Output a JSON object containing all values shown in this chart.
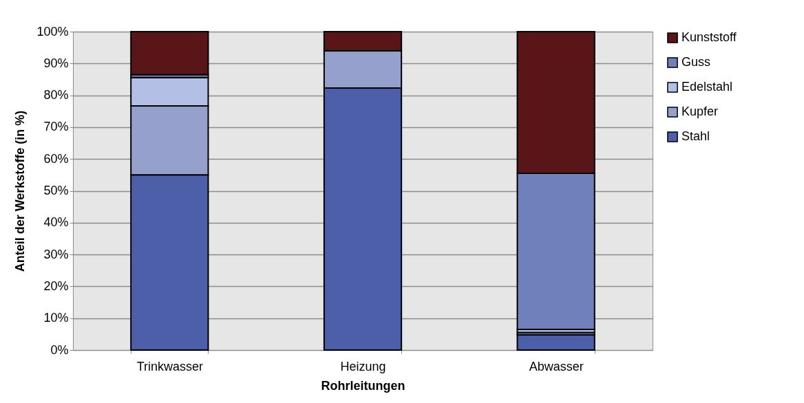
{
  "chart_data": {
    "type": "bar",
    "stacked": true,
    "xlabel": "Rohrleitungen",
    "ylabel": "Anteil der Werkstoffe (in %)",
    "categories": [
      "Trinkwasser",
      "Heizung",
      "Abwasser"
    ],
    "series": [
      {
        "name": "Stahl",
        "color": "#4d5fa9",
        "values": [
          55,
          82.3,
          4.8
        ]
      },
      {
        "name": "Kupfer",
        "color": "#95a0cd",
        "values": [
          21.7,
          11.7,
          0.7
        ]
      },
      {
        "name": "Edelstahl",
        "color": "#b4bfe6",
        "values": [
          8.9,
          0,
          1
        ]
      },
      {
        "name": "Guss",
        "color": "#7080bb",
        "values": [
          0.9,
          0,
          49
        ]
      },
      {
        "name": "Kunststoff",
        "color": "#5a1518",
        "values": [
          13.5,
          6,
          44.5
        ]
      }
    ],
    "ylim": [
      0,
      100
    ],
    "yticks": [
      {
        "value": 0,
        "label": "0%"
      },
      {
        "value": 10,
        "label": "10%"
      },
      {
        "value": 20,
        "label": "20%"
      },
      {
        "value": 30,
        "label": "30%"
      },
      {
        "value": 40,
        "label": "40%"
      },
      {
        "value": 50,
        "label": "50%"
      },
      {
        "value": 60,
        "label": "60%"
      },
      {
        "value": 70,
        "label": "70%"
      },
      {
        "value": 80,
        "label": "80%"
      },
      {
        "value": 90,
        "label": "90%"
      },
      {
        "value": 100,
        "label": "100%"
      }
    ],
    "grid": "y",
    "legend": "right"
  }
}
